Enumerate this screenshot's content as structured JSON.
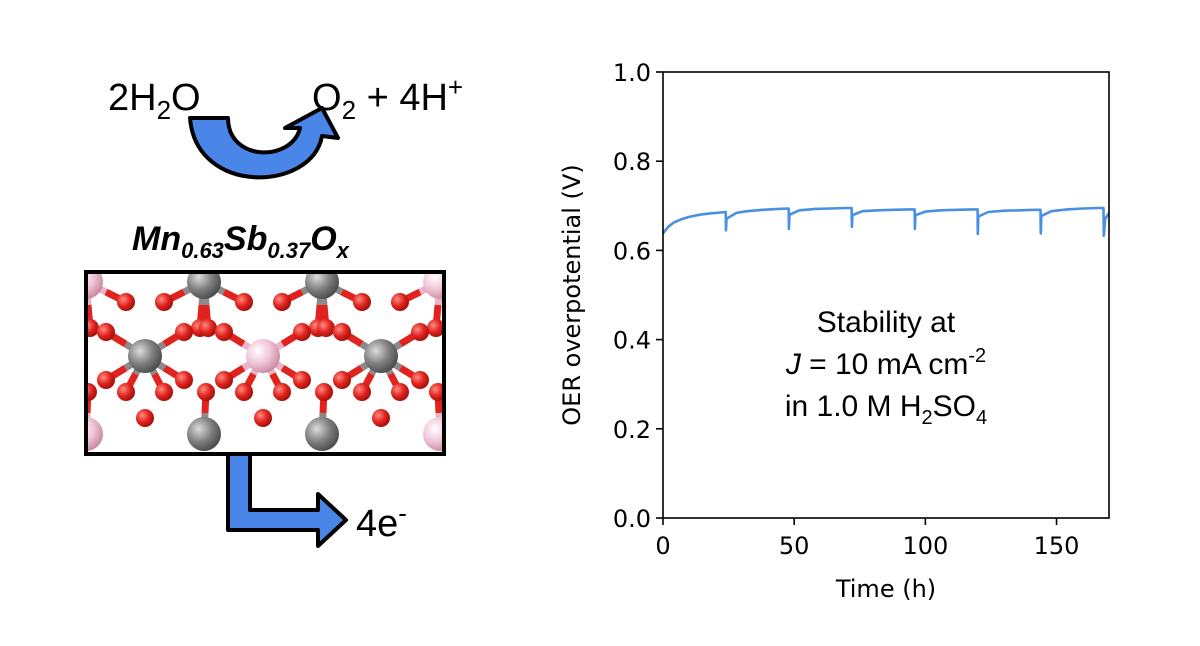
{
  "scheme": {
    "reactant": {
      "main": "2H",
      "sub": "2",
      "tail": "O"
    },
    "product": {
      "o": "O",
      "o_sub": "2",
      "rest": " + 4H",
      "sup": "+"
    },
    "catalyst": {
      "mn": "Mn",
      "mn_sub": "0.63",
      "sb": "Sb",
      "sb_sub": "0.37",
      "o": "O",
      "o_sub": "x"
    },
    "electrons": {
      "main": "4e",
      "sup": "-"
    },
    "colors": {
      "arrow": "#4a86e8",
      "oxygen": "#e0231e",
      "manganese": "#7f7f7f",
      "antimony": "#e9b3c9",
      "bond_gray": "#8a8a8a"
    }
  },
  "chart_data": {
    "type": "line",
    "xlabel": "Time (h)",
    "ylabel": "OER overpotential (V)",
    "xlim": [
      0,
      170
    ],
    "ylim": [
      0.0,
      1.0
    ],
    "xticks": [
      "0",
      "50",
      "100",
      "150"
    ],
    "xtick_values": [
      0,
      50,
      100,
      150
    ],
    "yticks": [
      "0.0",
      "0.2",
      "0.4",
      "0.6",
      "0.8",
      "1.0"
    ],
    "ytick_values": [
      0.0,
      0.2,
      0.4,
      0.6,
      0.8,
      1.0
    ],
    "grid": false,
    "line_color": "#4a90e2",
    "series": [
      {
        "x": [
          0,
          2,
          4,
          7,
          10,
          14,
          18,
          22,
          23.9,
          24,
          24.2,
          28,
          32,
          38,
          44,
          47.9,
          48,
          48.2,
          52,
          58,
          64,
          70,
          71.9,
          72,
          72.2,
          76,
          82,
          88,
          94,
          95.9,
          96,
          96.2,
          100,
          106,
          112,
          118,
          119.9,
          120,
          120.2,
          124,
          130,
          136,
          142,
          143.9,
          144,
          144.2,
          148,
          154,
          160,
          166,
          167.9,
          168,
          168.5,
          170
        ],
        "y": [
          0.638,
          0.653,
          0.662,
          0.67,
          0.675,
          0.68,
          0.683,
          0.685,
          0.686,
          0.645,
          0.671,
          0.684,
          0.688,
          0.691,
          0.693,
          0.694,
          0.648,
          0.68,
          0.69,
          0.693,
          0.694,
          0.695,
          0.695,
          0.653,
          0.679,
          0.688,
          0.69,
          0.691,
          0.692,
          0.692,
          0.648,
          0.679,
          0.687,
          0.69,
          0.691,
          0.692,
          0.692,
          0.637,
          0.676,
          0.686,
          0.689,
          0.69,
          0.691,
          0.691,
          0.638,
          0.677,
          0.688,
          0.692,
          0.694,
          0.695,
          0.695,
          0.633,
          0.67,
          0.684
        ]
      }
    ],
    "annotation": {
      "line1": "Stability at",
      "j_symbol": "J",
      "line2_mid": " = 10 mA cm",
      "line2_sup": "-2",
      "line3_a": "in 1.0 M H",
      "line3_sub1": "2",
      "line3_b": "SO",
      "line3_sub2": "4"
    }
  }
}
